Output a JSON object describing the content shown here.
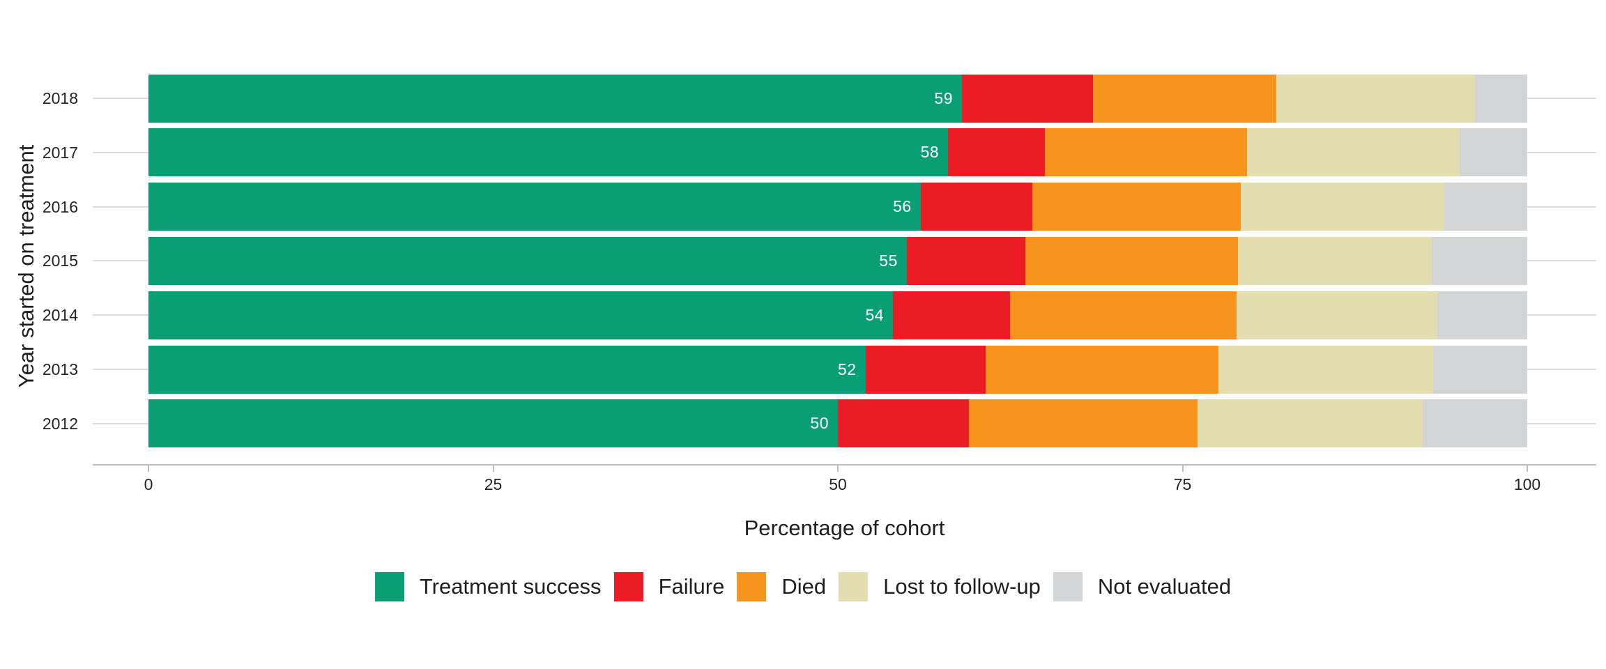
{
  "chart": {
    "x_axis_title": "Percentage of cohort",
    "y_axis_title": "Year started on treatment"
  },
  "axes": {
    "x_tick_labels": [
      "0",
      "25",
      "50",
      "75",
      "100"
    ],
    "y_tick_labels": [
      "2018",
      "2017",
      "2016",
      "2015",
      "2014",
      "2013",
      "2012"
    ]
  },
  "chart_data": {
    "type": "bar",
    "orientation": "horizontal",
    "stacked": true,
    "title": "",
    "xlabel": "Percentage of cohort",
    "ylabel": "Year started on treatment",
    "xlim": [
      0,
      100
    ],
    "x_ticks": [
      0,
      25,
      50,
      75,
      100
    ],
    "grid": "horizontal-category-gridlines",
    "legend_position": "bottom",
    "categories": [
      "2018",
      "2017",
      "2016",
      "2015",
      "2014",
      "2013",
      "2012"
    ],
    "series": [
      {
        "name": "Treatment success",
        "color": "#0A9E74",
        "values": [
          59,
          58,
          56,
          55,
          54,
          52,
          50
        ],
        "bar_labels": [
          "59",
          "58",
          "56",
          "55",
          "54",
          "52",
          "50"
        ],
        "bar_label_color": "#FFFFFF"
      },
      {
        "name": "Failure",
        "color": "#EC1C24",
        "values": [
          9.5,
          7,
          8.1,
          8.6,
          8.5,
          8.7,
          9.5
        ]
      },
      {
        "name": "Died",
        "color": "#F7941E",
        "values": [
          13.3,
          14.7,
          15.1,
          15.4,
          16.4,
          16.9,
          16.6
        ]
      },
      {
        "name": "Lost to follow-up",
        "color": "#E4DDB0",
        "values": [
          14.4,
          15.4,
          14.8,
          14.1,
          14.6,
          15.6,
          16.3
        ]
      },
      {
        "name": "Not evaluated",
        "color": "#D2D4D6",
        "values": [
          3.8,
          4.9,
          6,
          6.9,
          6.5,
          6.8,
          7.6
        ]
      }
    ]
  },
  "legend": {
    "items": [
      {
        "label": "Treatment success",
        "color": "#0A9E74"
      },
      {
        "label": "Failure",
        "color": "#EC1C24"
      },
      {
        "label": "Died",
        "color": "#F7941E"
      },
      {
        "label": "Lost to follow-up",
        "color": "#E4DDB0"
      },
      {
        "label": "Not evaluated",
        "color": "#D2D4D6"
      }
    ]
  },
  "styles": {
    "gridline_color": "#DCDCDC",
    "axis_line_color": "#BEBEBE",
    "text_color": "#1F1F1F",
    "background_color": "#FFFFFF"
  }
}
